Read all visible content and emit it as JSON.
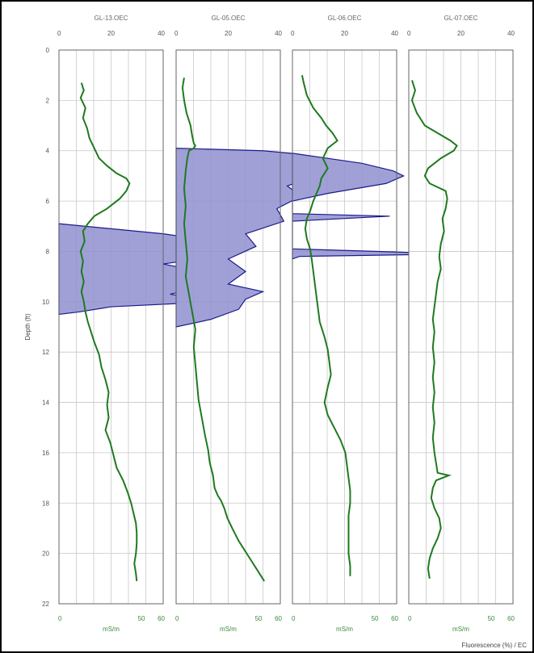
{
  "chart_data": {
    "type": "line",
    "ylabel": "Depth (ft)",
    "y_axis": {
      "ylim": [
        0,
        22
      ],
      "ticks": [
        0,
        2,
        4,
        6,
        8,
        10,
        12,
        14,
        16,
        18,
        20,
        22
      ],
      "reversed": true
    },
    "top_axis": {
      "range": [
        0,
        40
      ],
      "ticks": [
        0,
        20,
        40
      ],
      "tick_labels": [
        "0",
        "20",
        "40"
      ]
    },
    "bottom_axis": {
      "range": [
        0,
        60
      ],
      "ticks": [
        0,
        50,
        60
      ],
      "tick_labels": [
        "0",
        "50",
        "60"
      ],
      "label": "mS/m"
    },
    "footnote": "Fluorescence (%) / EC",
    "grid": true,
    "colors": {
      "fluorescence_fill": "#8f8fd0",
      "fluorescence_line": "#1a1a8c",
      "ec_line": "#1f7a1f",
      "grid": "#c8c8c8"
    },
    "panels": [
      {
        "title": "GL-13.OEC",
        "ec": [
          [
            28,
            1.3
          ],
          [
            31,
            1.6
          ],
          [
            27,
            1.9
          ],
          [
            33,
            2.3
          ],
          [
            30,
            2.7
          ],
          [
            35,
            3.1
          ],
          [
            38,
            3.5
          ],
          [
            44,
            3.9
          ],
          [
            50,
            4.3
          ],
          [
            60,
            4.6
          ],
          [
            72,
            4.9
          ],
          [
            84,
            5.1
          ],
          [
            88,
            5.3
          ],
          [
            84,
            5.6
          ],
          [
            76,
            5.9
          ],
          [
            60,
            6.3
          ],
          [
            44,
            6.6
          ],
          [
            36,
            6.9
          ],
          [
            30,
            7.2
          ],
          [
            32,
            7.6
          ],
          [
            27,
            8.0
          ],
          [
            30,
            8.4
          ],
          [
            28,
            8.8
          ],
          [
            31,
            9.2
          ],
          [
            28,
            9.6
          ],
          [
            31,
            10.0
          ],
          [
            33,
            10.4
          ],
          [
            36,
            10.8
          ],
          [
            40,
            11.2
          ],
          [
            44,
            11.6
          ],
          [
            50,
            12.1
          ],
          [
            53,
            12.6
          ],
          [
            58,
            13.1
          ],
          [
            62,
            13.6
          ],
          [
            60,
            14.1
          ],
          [
            62,
            14.6
          ],
          [
            58,
            15.1
          ],
          [
            64,
            15.6
          ],
          [
            68,
            16.1
          ],
          [
            72,
            16.6
          ],
          [
            80,
            17.1
          ],
          [
            86,
            17.6
          ],
          [
            90,
            18.0
          ],
          [
            93,
            18.4
          ],
          [
            96,
            18.8
          ],
          [
            97,
            19.2
          ],
          [
            97,
            19.6
          ],
          [
            96,
            20.0
          ],
          [
            94,
            20.4
          ],
          [
            96,
            20.8
          ],
          [
            97,
            21.1
          ]
        ],
        "fl": [
          [
            0,
            6.9
          ],
          [
            30,
            7.1
          ],
          [
            60,
            7.3
          ],
          [
            90,
            7.6
          ],
          [
            78,
            7.9
          ],
          [
            90,
            8.2
          ],
          [
            60,
            8.5
          ],
          [
            82,
            8.8
          ],
          [
            70,
            9.1
          ],
          [
            84,
            9.4
          ],
          [
            64,
            9.7
          ],
          [
            90,
            10.0
          ],
          [
            30,
            10.2
          ],
          [
            12,
            10.4
          ],
          [
            0,
            10.5
          ]
        ]
      },
      {
        "title": "GL-05.OEC",
        "ec": [
          [
            10,
            1.1
          ],
          [
            8,
            1.5
          ],
          [
            10,
            2.0
          ],
          [
            13,
            2.5
          ],
          [
            18,
            3.0
          ],
          [
            20,
            3.4
          ],
          [
            22,
            3.7
          ],
          [
            24,
            3.8
          ],
          [
            22,
            3.9
          ],
          [
            16,
            4.0
          ],
          [
            14,
            4.3
          ],
          [
            12,
            4.8
          ],
          [
            10,
            5.5
          ],
          [
            12,
            6.2
          ],
          [
            10,
            6.9
          ],
          [
            12,
            7.6
          ],
          [
            14,
            8.3
          ],
          [
            12,
            9.0
          ],
          [
            16,
            9.7
          ],
          [
            20,
            10.4
          ],
          [
            24,
            11.1
          ],
          [
            22,
            11.8
          ],
          [
            24,
            12.5
          ],
          [
            26,
            13.2
          ],
          [
            28,
            13.9
          ],
          [
            32,
            14.6
          ],
          [
            36,
            15.3
          ],
          [
            40,
            15.9
          ],
          [
            42,
            16.4
          ],
          [
            46,
            16.9
          ],
          [
            48,
            17.4
          ],
          [
            52,
            17.7
          ],
          [
            56,
            17.9
          ],
          [
            60,
            18.2
          ],
          [
            64,
            18.6
          ],
          [
            70,
            19.0
          ],
          [
            78,
            19.5
          ],
          [
            86,
            19.9
          ],
          [
            94,
            20.3
          ],
          [
            102,
            20.7
          ],
          [
            108,
            21.0
          ],
          [
            110,
            21.1
          ]
        ],
        "fl": [
          [
            0,
            3.9
          ],
          [
            50,
            4.0
          ],
          [
            82,
            4.2
          ],
          [
            90,
            4.4
          ],
          [
            76,
            4.7
          ],
          [
            80,
            5.0
          ],
          [
            64,
            5.4
          ],
          [
            72,
            5.8
          ],
          [
            58,
            6.3
          ],
          [
            62,
            6.8
          ],
          [
            40,
            7.3
          ],
          [
            46,
            7.8
          ],
          [
            30,
            8.3
          ],
          [
            40,
            8.8
          ],
          [
            30,
            9.3
          ],
          [
            50,
            9.6
          ],
          [
            40,
            9.9
          ],
          [
            36,
            10.3
          ],
          [
            20,
            10.7
          ],
          [
            0,
            11.0
          ]
        ]
      },
      {
        "title": "GL-06.OEC",
        "ec": [
          [
            12,
            1.0
          ],
          [
            14,
            1.3
          ],
          [
            18,
            1.8
          ],
          [
            26,
            2.3
          ],
          [
            36,
            2.7
          ],
          [
            42,
            3.0
          ],
          [
            50,
            3.3
          ],
          [
            56,
            3.6
          ],
          [
            44,
            3.9
          ],
          [
            38,
            4.3
          ],
          [
            44,
            4.7
          ],
          [
            36,
            5.1
          ],
          [
            34,
            5.4
          ],
          [
            30,
            5.7
          ],
          [
            26,
            6.0
          ],
          [
            22,
            6.4
          ],
          [
            18,
            6.7
          ],
          [
            16,
            7.1
          ],
          [
            18,
            7.5
          ],
          [
            22,
            7.9
          ],
          [
            24,
            8.3
          ],
          [
            26,
            8.8
          ],
          [
            28,
            9.3
          ],
          [
            30,
            9.8
          ],
          [
            32,
            10.3
          ],
          [
            34,
            10.8
          ],
          [
            40,
            11.4
          ],
          [
            44,
            11.9
          ],
          [
            46,
            12.4
          ],
          [
            48,
            12.9
          ],
          [
            44,
            13.4
          ],
          [
            40,
            14.0
          ],
          [
            44,
            14.5
          ],
          [
            52,
            15.0
          ],
          [
            60,
            15.5
          ],
          [
            66,
            16.0
          ],
          [
            68,
            16.5
          ],
          [
            70,
            17.0
          ],
          [
            72,
            17.5
          ],
          [
            72,
            18.0
          ],
          [
            70,
            18.5
          ],
          [
            70,
            19.0
          ],
          [
            70,
            19.5
          ],
          [
            70,
            20.0
          ],
          [
            72,
            20.5
          ],
          [
            72,
            20.9
          ]
        ],
        "fl": [
          [
            0,
            4.1
          ],
          [
            20,
            4.3
          ],
          [
            40,
            4.5
          ],
          [
            58,
            4.8
          ],
          [
            64,
            5.0
          ],
          [
            54,
            5.3
          ],
          [
            20,
            5.7
          ],
          [
            0,
            6.0
          ],
          [
            0,
            6.5
          ],
          [
            56,
            6.6
          ],
          [
            0,
            6.8
          ],
          [
            0,
            7.9
          ],
          [
            96,
            8.1
          ],
          [
            4,
            8.2
          ],
          [
            0,
            8.3
          ]
        ]
      },
      {
        "title": "GL-07.OEC",
        "ec": [
          [
            4,
            1.2
          ],
          [
            8,
            1.6
          ],
          [
            4,
            2.0
          ],
          [
            10,
            2.5
          ],
          [
            20,
            3.0
          ],
          [
            36,
            3.3
          ],
          [
            52,
            3.6
          ],
          [
            60,
            3.8
          ],
          [
            56,
            4.0
          ],
          [
            40,
            4.3
          ],
          [
            24,
            4.7
          ],
          [
            20,
            5.0
          ],
          [
            26,
            5.3
          ],
          [
            46,
            5.6
          ],
          [
            48,
            5.9
          ],
          [
            46,
            6.3
          ],
          [
            42,
            6.7
          ],
          [
            44,
            7.2
          ],
          [
            40,
            7.7
          ],
          [
            38,
            8.2
          ],
          [
            40,
            8.7
          ],
          [
            36,
            9.2
          ],
          [
            34,
            9.7
          ],
          [
            32,
            10.2
          ],
          [
            30,
            10.7
          ],
          [
            32,
            11.2
          ],
          [
            30,
            11.8
          ],
          [
            32,
            12.4
          ],
          [
            30,
            13.0
          ],
          [
            32,
            13.6
          ],
          [
            30,
            14.2
          ],
          [
            32,
            14.8
          ],
          [
            30,
            15.4
          ],
          [
            32,
            16.0
          ],
          [
            34,
            16.4
          ],
          [
            36,
            16.8
          ],
          [
            50,
            16.9
          ],
          [
            34,
            17.1
          ],
          [
            30,
            17.4
          ],
          [
            28,
            17.8
          ],
          [
            32,
            18.2
          ],
          [
            38,
            18.6
          ],
          [
            40,
            19.0
          ],
          [
            36,
            19.4
          ],
          [
            30,
            19.8
          ],
          [
            26,
            20.2
          ],
          [
            24,
            20.6
          ],
          [
            26,
            21.0
          ]
        ],
        "fl": []
      }
    ]
  }
}
